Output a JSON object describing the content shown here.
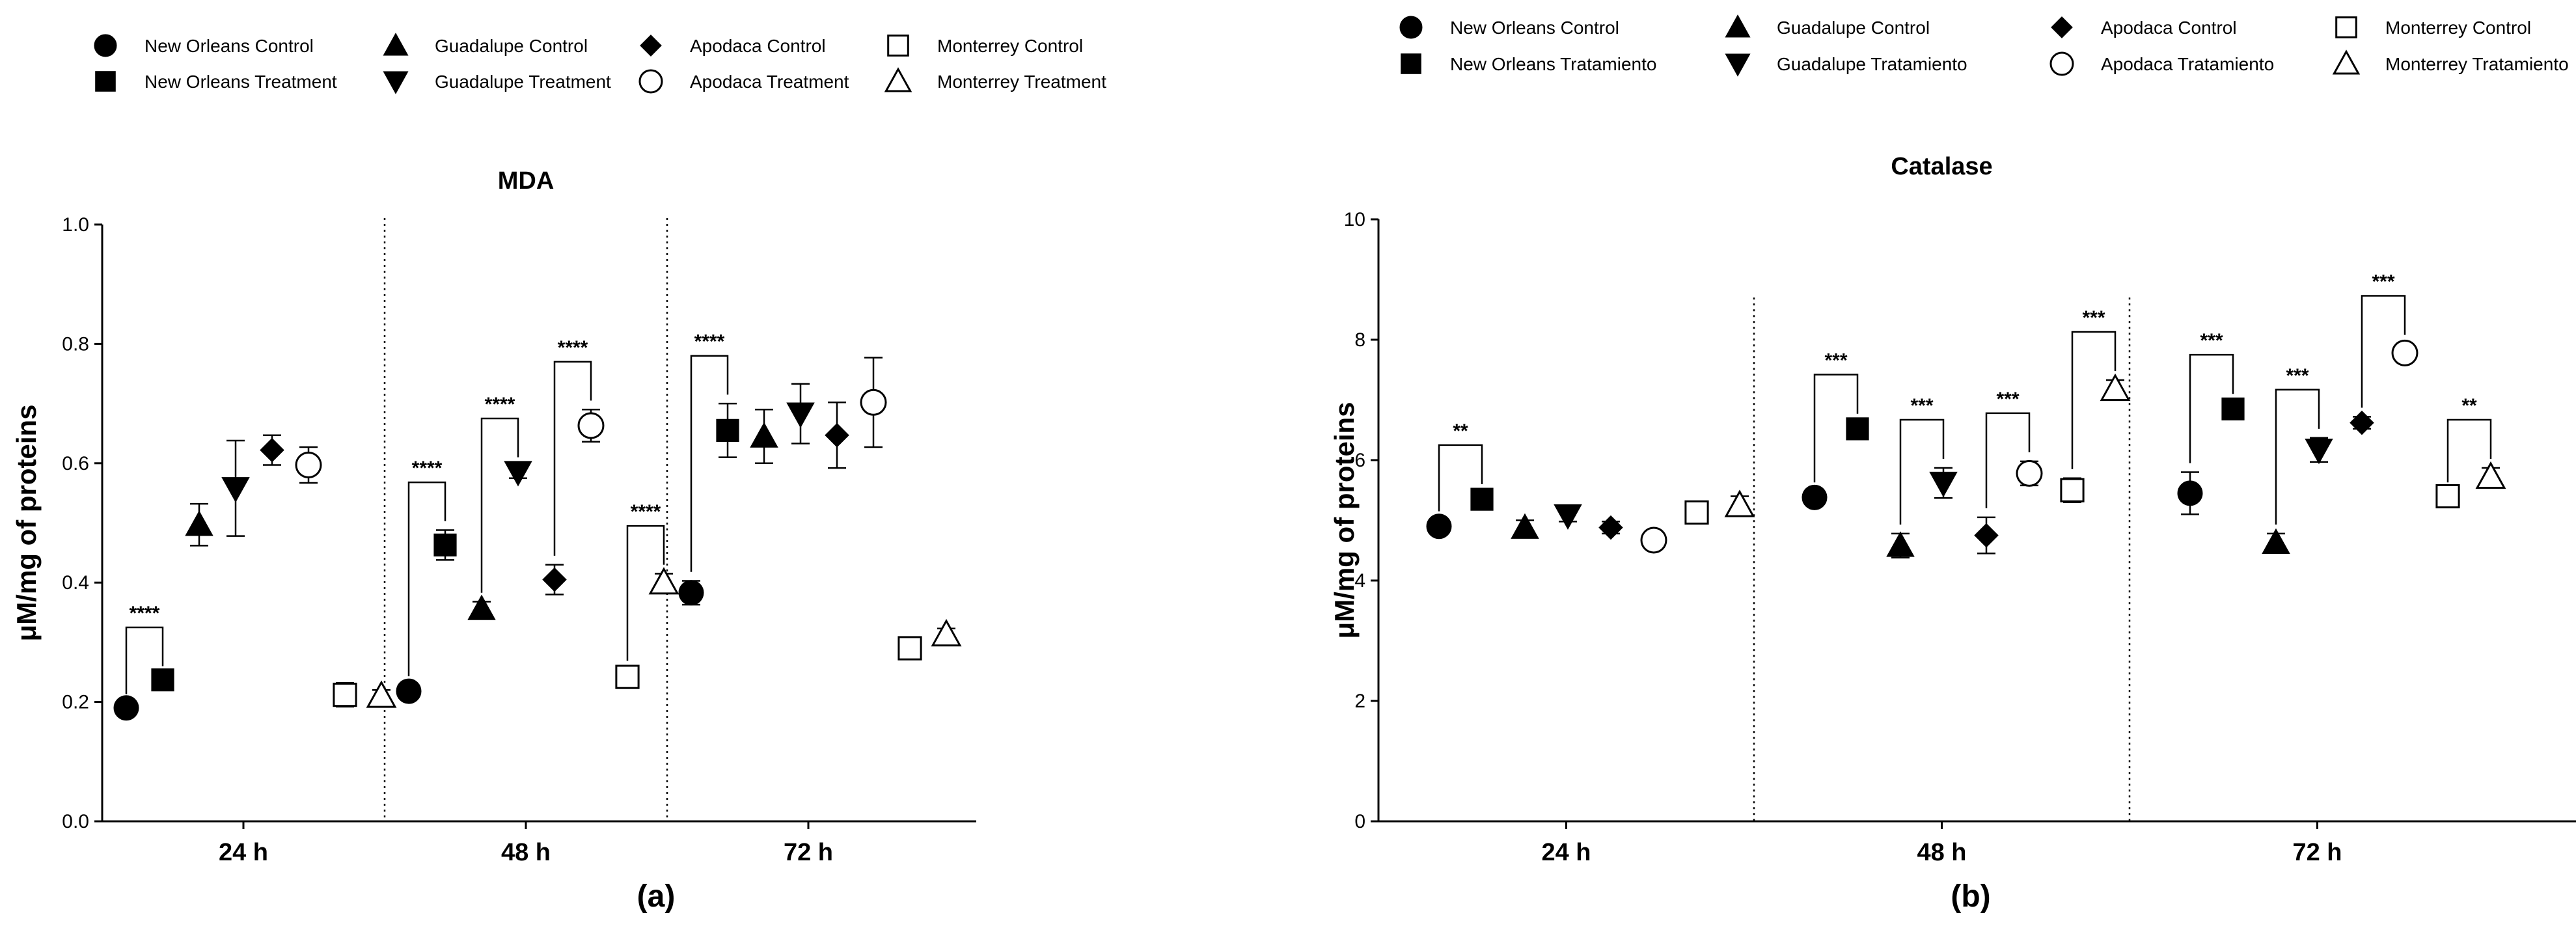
{
  "figure": {
    "label_a": "(a)",
    "label_b": "(b)"
  },
  "colors": {
    "ink": "#000000",
    "background": "#ffffff"
  },
  "chart_data": [
    {
      "type": "scatter",
      "title": "MDA",
      "ylabel": "μM/mg of proteins",
      "xlabel": "",
      "ylim": [
        0,
        1.0
      ],
      "yticks": [
        0.0,
        0.2,
        0.4,
        0.6,
        0.8,
        1.0
      ],
      "ytick_labels": [
        "0.0",
        "0.2",
        "0.4",
        "0.6",
        "0.8",
        "1.0"
      ],
      "categories": [
        "24 h",
        "48 h",
        "72 h"
      ],
      "legend_position": "top",
      "legend": [
        {
          "label": "New Orleans Control",
          "marker": "circle-filled"
        },
        {
          "label": "New Orleans Treatment",
          "marker": "square-filled"
        },
        {
          "label": "Guadalupe Control",
          "marker": "triangle-up-filled"
        },
        {
          "label": "Guadalupe Treatment",
          "marker": "triangle-down-filled"
        },
        {
          "label": "Apodaca Control",
          "marker": "diamond-filled"
        },
        {
          "label": "Apodaca Treatment",
          "marker": "circle-open"
        },
        {
          "label": "Monterrey Control",
          "marker": "square-open"
        },
        {
          "label": "Monterrey Treatment",
          "marker": "triangle-up-open"
        }
      ],
      "series": [
        {
          "name": "New Orleans Control",
          "marker": "circle-filled",
          "values": [
            0.19,
            0.218,
            0.383
          ],
          "errors": [
            0.008,
            0.01,
            0.02
          ]
        },
        {
          "name": "New Orleans Treatment",
          "marker": "square-filled",
          "values": [
            0.237,
            0.463,
            0.655
          ],
          "errors": [
            0.008,
            0.025,
            0.045
          ]
        },
        {
          "name": "Guadalupe Control",
          "marker": "triangle-up-filled",
          "values": [
            0.497,
            0.356,
            0.645
          ],
          "errors": [
            0.035,
            0.012,
            0.045
          ]
        },
        {
          "name": "Guadalupe Treatment",
          "marker": "triangle-down-filled",
          "values": [
            0.558,
            0.585,
            0.683
          ],
          "errors": [
            0.08,
            0.01,
            0.05
          ]
        },
        {
          "name": "Apodaca Control",
          "marker": "diamond-filled",
          "values": [
            0.622,
            0.405,
            0.647
          ],
          "errors": [
            0.025,
            0.025,
            0.055
          ]
        },
        {
          "name": "Apodaca Treatment",
          "marker": "circle-open",
          "values": [
            0.597,
            0.663,
            0.702
          ],
          "errors": [
            0.03,
            0.027,
            0.075
          ]
        },
        {
          "name": "Monterrey Control",
          "marker": "square-open",
          "values": [
            0.212,
            0.242,
            0.29
          ],
          "errors": [
            0.02,
            0.012,
            0.015
          ]
        },
        {
          "name": "Monterrey Treatment",
          "marker": "triangle-up-open",
          "values": [
            0.21,
            0.4,
            0.313
          ],
          "errors": [
            0.01,
            0.015,
            0.01
          ]
        }
      ],
      "significance": [
        {
          "group": 0,
          "from": 0,
          "to": 1,
          "label": "****"
        },
        {
          "group": 1,
          "from": 0,
          "to": 1,
          "label": "****"
        },
        {
          "group": 1,
          "from": 2,
          "to": 3,
          "label": "****"
        },
        {
          "group": 1,
          "from": 4,
          "to": 5,
          "label": "****"
        },
        {
          "group": 1,
          "from": 6,
          "to": 7,
          "label": "****"
        },
        {
          "group": 2,
          "from": 0,
          "to": 1,
          "label": "****"
        }
      ]
    },
    {
      "type": "scatter",
      "title": "Catalase",
      "ylabel": "μM/mg of proteins",
      "xlabel": "",
      "ylim": [
        0,
        10
      ],
      "yticks": [
        0,
        2,
        4,
        6,
        8,
        10
      ],
      "ytick_labels": [
        "0",
        "2",
        "4",
        "6",
        "8",
        "10"
      ],
      "categories": [
        "24 h",
        "48 h",
        "72 h"
      ],
      "legend_position": "top",
      "legend": [
        {
          "label": "New Orleans Control",
          "marker": "circle-filled"
        },
        {
          "label": "New Orleans Tratamiento",
          "marker": "square-filled"
        },
        {
          "label": "Guadalupe Control",
          "marker": "triangle-up-filled"
        },
        {
          "label": "Guadalupe Tratamiento",
          "marker": "triangle-down-filled"
        },
        {
          "label": "Apodaca Control",
          "marker": "diamond-filled"
        },
        {
          "label": "Apodaca Tratamiento",
          "marker": "circle-open"
        },
        {
          "label": "Monterrey Control",
          "marker": "square-open"
        },
        {
          "label": "Monterrey Tratamiento",
          "marker": "triangle-up-open"
        }
      ],
      "series": [
        {
          "name": "New Orleans Control",
          "marker": "circle-filled",
          "values": [
            4.9,
            5.38,
            5.45
          ],
          "errors": [
            0.1,
            0.1,
            0.35
          ]
        },
        {
          "name": "New Orleans Tratamiento",
          "marker": "square-filled",
          "values": [
            5.35,
            6.52,
            6.85
          ],
          "errors": [
            0.1,
            0.1,
            0.1
          ]
        },
        {
          "name": "Guadalupe Control",
          "marker": "triangle-up-filled",
          "values": [
            4.88,
            4.58,
            4.63
          ],
          "errors": [
            0.12,
            0.2,
            0.15
          ]
        },
        {
          "name": "Guadalupe Tratamiento",
          "marker": "triangle-down-filled",
          "values": [
            5.08,
            5.62,
            6.17
          ],
          "errors": [
            0.1,
            0.25,
            0.2
          ]
        },
        {
          "name": "Apodaca Control",
          "marker": "diamond-filled",
          "values": [
            4.88,
            4.75,
            6.62
          ],
          "errors": [
            0.1,
            0.3,
            0.1
          ]
        },
        {
          "name": "Apodaca Tratamiento",
          "marker": "circle-open",
          "values": [
            4.67,
            5.78,
            7.78
          ],
          "errors": [
            0.1,
            0.2,
            0.15
          ]
        },
        {
          "name": "Monterrey Control",
          "marker": "square-open",
          "values": [
            5.13,
            5.5,
            5.4
          ],
          "errors": [
            0.05,
            0.2,
            0.08
          ]
        },
        {
          "name": "Monterrey Tratamiento",
          "marker": "triangle-up-open",
          "values": [
            5.25,
            7.18,
            5.72
          ],
          "errors": [
            0.15,
            0.15,
            0.15
          ]
        }
      ],
      "significance": [
        {
          "group": 0,
          "from": 0,
          "to": 1,
          "label": "**"
        },
        {
          "group": 1,
          "from": 0,
          "to": 1,
          "label": "***"
        },
        {
          "group": 1,
          "from": 2,
          "to": 3,
          "label": "***"
        },
        {
          "group": 1,
          "from": 4,
          "to": 5,
          "label": "***"
        },
        {
          "group": 1,
          "from": 6,
          "to": 7,
          "label": "***"
        },
        {
          "group": 2,
          "from": 0,
          "to": 1,
          "label": "***"
        },
        {
          "group": 2,
          "from": 2,
          "to": 3,
          "label": "***"
        },
        {
          "group": 2,
          "from": 4,
          "to": 5,
          "label": "***"
        },
        {
          "group": 2,
          "from": 6,
          "to": 7,
          "label": "**"
        }
      ]
    }
  ]
}
